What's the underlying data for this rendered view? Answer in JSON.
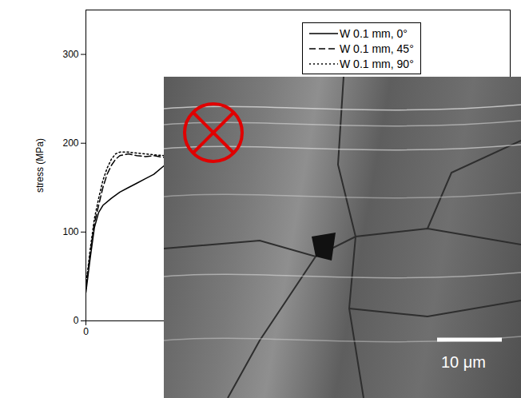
{
  "chart_data": {
    "type": "line",
    "ylabel": "stress (MPa)",
    "xlim": [
      0,
      10
    ],
    "xticks": [
      0
    ],
    "ylim": [
      0,
      350
    ],
    "yticks": [
      0,
      100,
      200,
      300
    ],
    "legend": "top-right",
    "annotations": [
      "10 μm"
    ],
    "series": [
      {
        "name": "W 0.1 mm, 0°",
        "color": "#000000",
        "line_style": "solid",
        "x": [
          0,
          0.1,
          0.2,
          0.3,
          0.4,
          0.6,
          0.8,
          1.0,
          1.2,
          1.4,
          1.6,
          1.85
        ],
        "values": [
          32,
          70,
          105,
          122,
          130,
          138,
          145,
          150,
          155,
          160,
          165,
          175
        ]
      },
      {
        "name": "W 0.1 mm, 45°",
        "color": "#000000",
        "line_style": "dashed",
        "x": [
          0,
          0.1,
          0.2,
          0.3,
          0.4,
          0.5,
          0.6,
          0.7,
          0.8,
          1.0,
          1.2,
          1.4,
          1.6,
          1.85
        ],
        "values": [
          38,
          75,
          110,
          130,
          150,
          165,
          175,
          182,
          186,
          188,
          186,
          185,
          186,
          184
        ]
      },
      {
        "name": "W 0.1 mm, 90°",
        "color": "#000000",
        "line_style": "dotted",
        "x": [
          0,
          0.1,
          0.2,
          0.3,
          0.4,
          0.5,
          0.6,
          0.7,
          0.8,
          1.0,
          1.2,
          1.4,
          1.6,
          1.85
        ],
        "values": [
          40,
          80,
          115,
          138,
          158,
          172,
          182,
          188,
          190,
          190,
          189,
          188,
          187,
          186
        ]
      }
    ]
  }
}
